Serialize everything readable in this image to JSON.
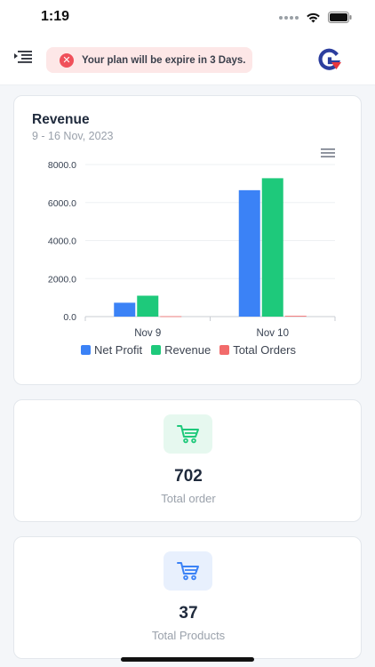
{
  "status_bar": {
    "time": "1:19"
  },
  "header": {
    "alert_text": "Your plan will be expire in 3 Days.",
    "logo_letter": "G"
  },
  "colors": {
    "net_profit": "#3b82f6",
    "revenue": "#1ec97b",
    "total_orders": "#f26b6b",
    "order_icon_bg": "#e6f8ef",
    "order_icon": "#1ec97b",
    "product_icon_bg": "#e8f0fd",
    "product_icon": "#3b82f6",
    "logo_blue": "#2c3e9e",
    "logo_red": "#e8353d"
  },
  "revenue_card": {
    "title": "Revenue",
    "subtitle": "9 - 16 Nov, 2023",
    "menu_icon": "hamburger-icon"
  },
  "chart_data": {
    "type": "bar",
    "title": "Revenue",
    "subtitle": "9 - 16 Nov, 2023",
    "categories": [
      "Nov 9",
      "Nov 10"
    ],
    "series": [
      {
        "name": "Net Profit",
        "values": [
          730,
          6650
        ]
      },
      {
        "name": "Revenue",
        "values": [
          1100,
          7280
        ]
      },
      {
        "name": "Total Orders",
        "values": [
          20,
          40
        ]
      }
    ],
    "y_ticks": [
      "8000.0",
      "6000.0",
      "4000.0",
      "2000.0",
      "0.0"
    ],
    "ylim": [
      0,
      8000
    ],
    "grid": true,
    "legend_position": "bottom"
  },
  "stats": {
    "orders": {
      "value": "702",
      "label": "Total order",
      "icon": "cart-icon"
    },
    "products": {
      "value": "37",
      "label": "Total Products",
      "icon": "cart-icon"
    }
  }
}
